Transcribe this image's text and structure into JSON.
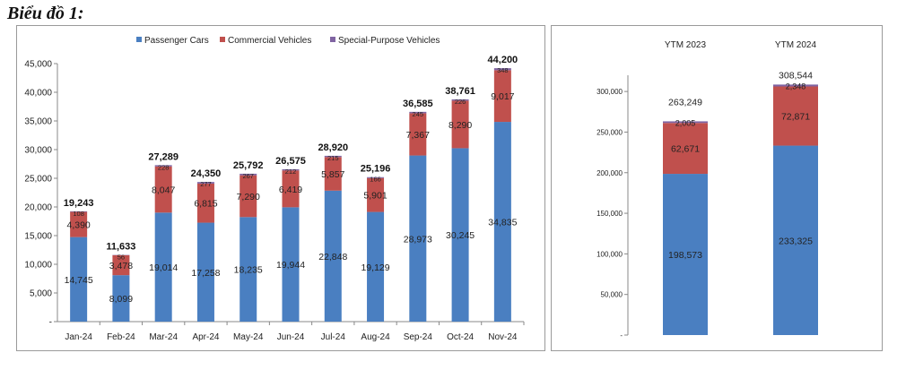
{
  "heading": "Biểu đồ 1:",
  "colors": {
    "passenger": "#4a7fc1",
    "commercial": "#c0504d",
    "special": "#8064a2"
  },
  "chart_data": [
    {
      "type": "bar",
      "stacked": true,
      "categories": [
        "Jan-24",
        "Feb-24",
        "Mar-24",
        "Apr-24",
        "May-24",
        "Jun-24",
        "Jul-24",
        "Aug-24",
        "Sep-24",
        "Oct-24",
        "Nov-24"
      ],
      "series": [
        {
          "name": "Passenger Cars",
          "values": [
            14745,
            8099,
            19014,
            17258,
            18235,
            19944,
            22848,
            19129,
            28973,
            30245,
            34835
          ]
        },
        {
          "name": "Commercial Vehicles",
          "values": [
            4390,
            3478,
            8047,
            6815,
            7290,
            6419,
            5857,
            5901,
            7367,
            8290,
            9017
          ]
        },
        {
          "name": "Special-Purpose Vehicles",
          "values": [
            108,
            56,
            228,
            277,
            267,
            212,
            215,
            166,
            245,
            226,
            348
          ]
        }
      ],
      "totals": [
        19243,
        11633,
        27289,
        24350,
        25792,
        26575,
        28920,
        25196,
        36585,
        38761,
        44200
      ],
      "totals_text": [
        "19,243",
        "11,633",
        "27,289",
        "24,350",
        "25,792",
        "26,575",
        "28,920",
        "25,196",
        "36,585",
        "38,761",
        "44,200"
      ],
      "ylim": [
        0,
        45000
      ],
      "yticks": [
        "-",
        "5,000",
        "10,000",
        "15,000",
        "20,000",
        "25,000",
        "30,000",
        "35,000",
        "40,000",
        "45,000"
      ],
      "legend_position": "top",
      "grid": false
    },
    {
      "type": "bar",
      "stacked": true,
      "categories": [
        "YTM 2023",
        "YTM 2024"
      ],
      "series": [
        {
          "values": [
            198573,
            233325
          ]
        },
        {
          "values": [
            62671,
            72871
          ]
        },
        {
          "values": [
            2005,
            2348
          ]
        }
      ],
      "totals": [
        263249,
        308544
      ],
      "totals_text": [
        "263,249",
        "308,544"
      ],
      "ylim": [
        0,
        320000
      ],
      "yticks": [
        "-",
        "50,000",
        "100,000",
        "150,000",
        "200,000",
        "250,000",
        "300,000"
      ],
      "category_position": "top",
      "grid": false
    }
  ]
}
